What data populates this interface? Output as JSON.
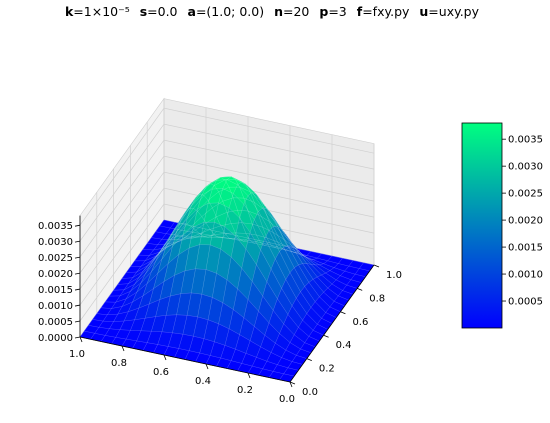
{
  "title": {
    "k_key": "k",
    "k_val": "=1×10⁻⁵",
    "s_key": "s",
    "s_val": "=0.0",
    "a_key": "a",
    "a_val": "=(1.0; 0.0)",
    "n_key": "n",
    "n_val": "=20",
    "p_key": "p",
    "p_val": "=3",
    "f_key": "f",
    "f_val": "=fxy.py",
    "u_key": "u",
    "u_val": "=uxy.py"
  },
  "chart_data": {
    "type": "surface3d",
    "surface": "z = zmax * (sin(pi*x) * sin(pi*y))^2 on [0,1]x[0,1]",
    "z_max": 0.0038,
    "grid_n": 20,
    "x_ticks": [
      "1.0",
      "0.8",
      "0.6",
      "0.4",
      "0.2",
      "0.0"
    ],
    "y_ticks": [
      "0.0",
      "0.2",
      "0.4",
      "0.6",
      "0.8",
      "1.0"
    ],
    "z_ticks": [
      "0.0000",
      "0.0005",
      "0.0010",
      "0.0015",
      "0.0020",
      "0.0025",
      "0.0030",
      "0.0035"
    ],
    "xlim": [
      0,
      1
    ],
    "ylim": [
      0,
      1
    ],
    "zlim": [
      0,
      0.0038
    ],
    "colormap": {
      "low": "#0000ff",
      "high": "#00ff80"
    },
    "colorbar": {
      "ticks": [
        "0.0005",
        "0.0010",
        "0.0015",
        "0.0020",
        "0.0025",
        "0.0030",
        "0.0035"
      ],
      "range": [
        0,
        0.0038
      ]
    },
    "grid": true
  }
}
